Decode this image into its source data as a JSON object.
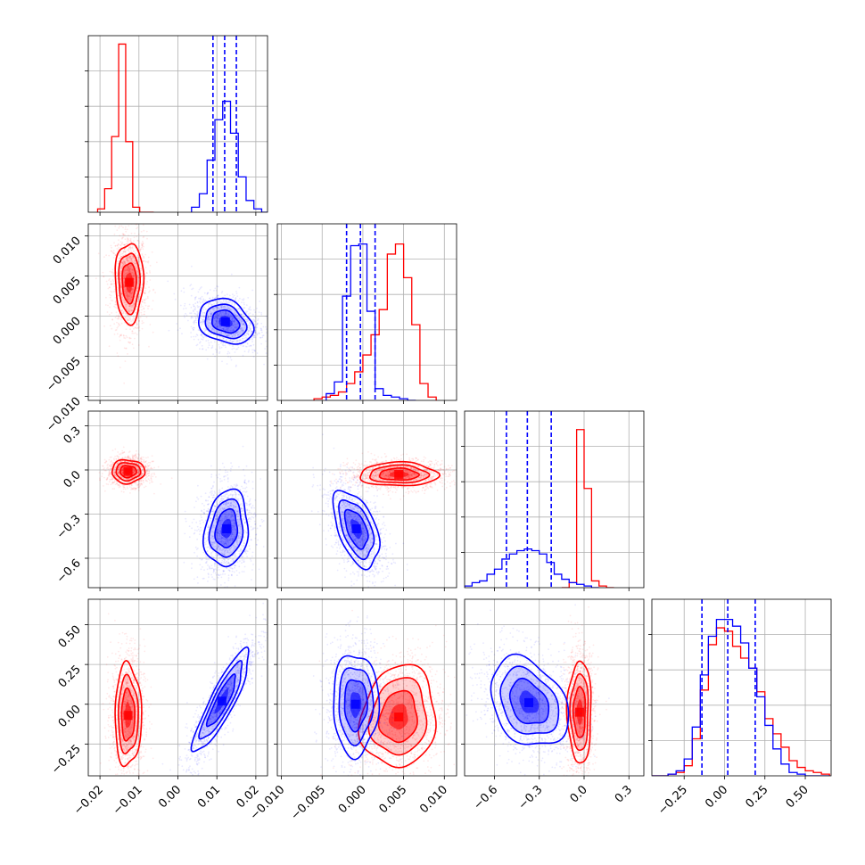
{
  "colors": {
    "red": "#ff0000",
    "blue": "#0000ff",
    "grid": "#b0b0b0"
  },
  "chart_data": {
    "type": "corner",
    "parameters": 4,
    "grid": true,
    "series_colors": [
      "#ff0000",
      "#0000ff"
    ],
    "axes": [
      {
        "range": [
          -0.023,
          0.023
        ],
        "ticks": [
          -0.02,
          -0.01,
          0.0,
          0.01,
          0.02
        ],
        "tick_labels": [
          "−0.02",
          "−0.01",
          "0.00",
          "0.01",
          "0.02"
        ]
      },
      {
        "range": [
          -0.0105,
          0.0115
        ],
        "ticks": [
          -0.01,
          -0.005,
          0.0,
          0.005,
          0.01
        ],
        "tick_labels": [
          "−0.010",
          "−0.005",
          "0.000",
          "0.005",
          "0.010"
        ]
      },
      {
        "range": [
          -0.8,
          0.4
        ],
        "ticks": [
          -0.6,
          -0.3,
          0.0,
          0.3
        ],
        "tick_labels": [
          "−0.6",
          "−0.3",
          "0.0",
          "0.3"
        ]
      },
      {
        "range": [
          -0.45,
          0.66
        ],
        "ticks": [
          -0.25,
          0.0,
          0.25,
          0.5
        ],
        "tick_labels": [
          "−0.25",
          "0.00",
          "0.25",
          "0.50"
        ]
      }
    ],
    "histograms": [
      {
        "param": 0,
        "quantiles_blue": [
          0.009,
          0.012,
          0.015
        ],
        "red": {
          "edges": [
            -0.0206,
            -0.0188,
            -0.017,
            -0.0152,
            -0.0134,
            -0.0116,
            -0.0098,
            -0.008,
            -0.0062
          ],
          "counts": [
            0.02,
            0.14,
            0.45,
            1.0,
            0.42,
            0.03,
            0.0,
            0.0
          ]
        },
        "blue": {
          "edges": [
            0.0035,
            0.0055,
            0.0075,
            0.0095,
            0.0115,
            0.0135,
            0.0155,
            0.0175,
            0.0195,
            0.0215,
            0.0235
          ],
          "counts": [
            0.03,
            0.11,
            0.31,
            0.55,
            0.66,
            0.47,
            0.21,
            0.07,
            0.02,
            0.0
          ]
        }
      },
      {
        "param": 1,
        "quantiles_blue": [
          -0.002,
          -0.0003,
          0.0015
        ],
        "red": {
          "edges": [
            -0.006,
            -0.005,
            -0.004,
            -0.003,
            -0.002,
            -0.001,
            0.0,
            0.001,
            0.002,
            0.003,
            0.004,
            0.005,
            0.006,
            0.007,
            0.008,
            0.009
          ],
          "counts": [
            0.01,
            0.02,
            0.03,
            0.05,
            0.1,
            0.17,
            0.27,
            0.39,
            0.54,
            0.87,
            0.93,
            0.73,
            0.45,
            0.1,
            0.02
          ]
        },
        "blue": {
          "edges": [
            -0.0045,
            -0.0035,
            -0.0025,
            -0.0015,
            -0.0005,
            0.0005,
            0.0015,
            0.0025,
            0.0035,
            0.0045,
            0.0055,
            0.0065
          ],
          "counts": [
            0.04,
            0.11,
            0.62,
            0.92,
            0.93,
            0.53,
            0.07,
            0.03,
            0.02,
            0.01,
            0.0
          ]
        }
      },
      {
        "param": 2,
        "quantiles_blue": [
          -0.52,
          -0.38,
          -0.22
        ],
        "red": {
          "edges": [
            -0.15,
            -0.1,
            -0.05,
            0.0,
            0.05,
            0.1,
            0.15,
            0.2
          ],
          "counts": [
            0.0,
            0.03,
            0.94,
            0.59,
            0.04,
            0.01,
            0.0
          ]
        },
        "blue": {
          "edges": [
            -0.8,
            -0.75,
            -0.7,
            -0.65,
            -0.6,
            -0.55,
            -0.5,
            -0.45,
            -0.4,
            -0.35,
            -0.3,
            -0.25,
            -0.2,
            -0.15,
            -0.1,
            -0.05,
            0.0,
            0.05,
            0.1
          ],
          "counts": [
            0.01,
            0.03,
            0.04,
            0.08,
            0.11,
            0.17,
            0.2,
            0.22,
            0.23,
            0.22,
            0.2,
            0.15,
            0.08,
            0.05,
            0.03,
            0.02,
            0.01,
            0.0
          ]
        }
      },
      {
        "param": 3,
        "quantiles_blue": [
          -0.14,
          0.02,
          0.19
        ],
        "red": {
          "edges": [
            -0.45,
            -0.4,
            -0.35,
            -0.3,
            -0.25,
            -0.2,
            -0.15,
            -0.1,
            -0.05,
            0.0,
            0.05,
            0.1,
            0.15,
            0.2,
            0.25,
            0.3,
            0.35,
            0.4,
            0.45,
            0.5,
            0.55,
            0.6,
            0.65
          ],
          "counts": [
            0.0,
            0.0,
            0.01,
            0.02,
            0.06,
            0.22,
            0.51,
            0.78,
            0.88,
            0.86,
            0.77,
            0.7,
            0.64,
            0.5,
            0.34,
            0.25,
            0.17,
            0.09,
            0.05,
            0.03,
            0.02,
            0.01
          ]
        },
        "blue": {
          "edges": [
            -0.45,
            -0.4,
            -0.35,
            -0.3,
            -0.25,
            -0.2,
            -0.15,
            -0.1,
            -0.05,
            0.0,
            0.05,
            0.1,
            0.15,
            0.2,
            0.25,
            0.3,
            0.35,
            0.4,
            0.45,
            0.5,
            0.55,
            0.6,
            0.65
          ],
          "counts": [
            0.0,
            0.0,
            0.01,
            0.03,
            0.1,
            0.29,
            0.6,
            0.83,
            0.93,
            0.93,
            0.89,
            0.79,
            0.64,
            0.47,
            0.3,
            0.16,
            0.07,
            0.02,
            0.01,
            0.0,
            0.0,
            0.0
          ]
        }
      }
    ],
    "panels_2d": [
      {
        "x": 0,
        "y": 1,
        "red": {
          "center": [
            -0.0125,
            0.0042
          ],
          "sigma": [
            0.0018,
            0.0025
          ],
          "rho": 0.0,
          "peak": [
            -0.0125,
            0.0042
          ]
        },
        "blue": {
          "center": [
            0.0122,
            0.0002
          ],
          "sigma": [
            0.0035,
            0.0014
          ],
          "rho": -0.25,
          "peak": [
            0.0122,
            -0.0007
          ]
        }
      },
      {
        "x": 0,
        "y": 2,
        "red": {
          "center": [
            -0.0128,
            -0.01
          ],
          "sigma": [
            0.0021,
            0.04
          ],
          "rho": 0.0,
          "peak": [
            -0.0128,
            -0.01
          ]
        },
        "blue": {
          "center": [
            0.0122,
            -0.38
          ],
          "sigma": [
            0.0028,
            0.13
          ],
          "rho": 0.15,
          "peak": [
            0.0125,
            -0.4
          ]
        }
      },
      {
        "x": 0,
        "y": 3,
        "red": {
          "center": [
            -0.0128,
            0.03
          ],
          "sigma": [
            0.0017,
            0.16
          ],
          "rho": 0.0,
          "peak": [
            -0.0128,
            -0.07
          ]
        },
        "blue": {
          "center": [
            0.0115,
            0.03
          ],
          "sigma": [
            0.0036,
            0.16
          ],
          "rho": 0.88,
          "peak": [
            0.0113,
            0.02
          ]
        }
      },
      {
        "x": 1,
        "y": 2,
        "red": {
          "center": [
            0.0042,
            -0.01
          ],
          "sigma": [
            0.0024,
            0.04
          ],
          "rho": 0.0,
          "peak": [
            0.0044,
            -0.03
          ]
        },
        "blue": {
          "center": [
            -0.0003,
            -0.38
          ],
          "sigma": [
            0.0014,
            0.13
          ],
          "rho": -0.5,
          "peak": [
            -0.0008,
            -0.4
          ]
        }
      },
      {
        "x": 1,
        "y": 3,
        "red": {
          "center": [
            0.0042,
            0.03
          ],
          "sigma": [
            0.0023,
            0.16
          ],
          "rho": 0.1,
          "peak": [
            0.0044,
            -0.08
          ]
        },
        "blue": {
          "center": [
            -0.0003,
            0.03
          ],
          "sigma": [
            0.0014,
            0.16
          ],
          "rho": 0.0,
          "peak": [
            -0.0009,
            0.0
          ]
        }
      },
      {
        "x": 2,
        "y": 3,
        "red": {
          "center": [
            -0.03,
            0.03
          ],
          "sigma": [
            0.04,
            0.16
          ],
          "rho": 0.0,
          "peak": [
            -0.03,
            -0.05
          ]
        },
        "blue": {
          "center": [
            -0.37,
            0.06
          ],
          "sigma": [
            0.13,
            0.14
          ],
          "rho": -0.3,
          "peak": [
            -0.37,
            0.01
          ]
        }
      }
    ]
  }
}
